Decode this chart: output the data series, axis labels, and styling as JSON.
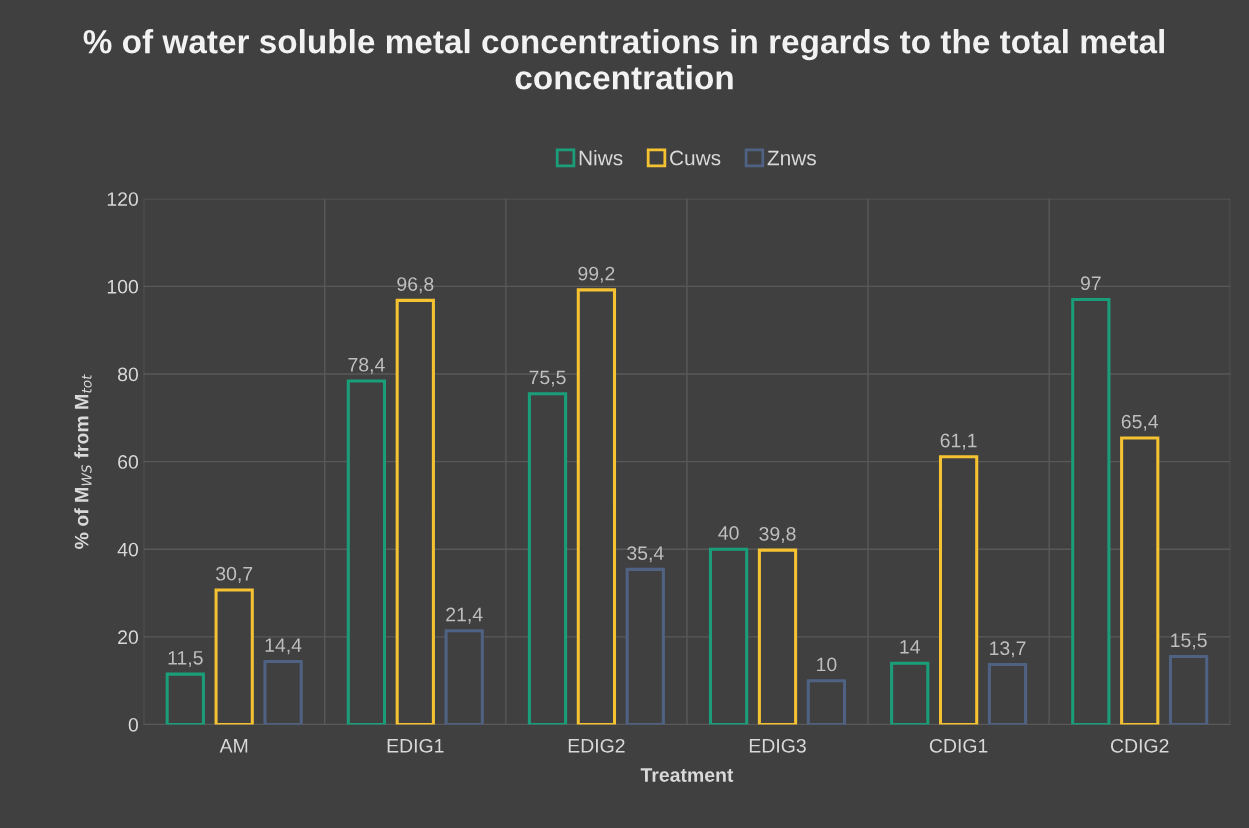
{
  "chart_data": {
    "type": "bar",
    "title": "% of water soluble metal concentrations in regards to the total metal concentration",
    "xlabel": "Treatment",
    "ylabel": "% of M$_{WS}$ from M$_{tot}$",
    "categories": [
      "AM",
      "EDIG1",
      "EDIG2",
      "EDIG3",
      "CDIG1",
      "CDIG2"
    ],
    "series": [
      {
        "name": "Niws",
        "color": "#1a9e7a",
        "values": [
          11.5,
          78.4,
          75.5,
          40,
          14,
          97
        ],
        "value_labels": [
          "11,5",
          "78,4",
          "75,5",
          "40",
          "14",
          "97"
        ]
      },
      {
        "name": "Cuws",
        "color": "#f5c232",
        "values": [
          30.7,
          96.8,
          99.2,
          39.8,
          61.1,
          65.4
        ],
        "value_labels": [
          "30,7",
          "96,8",
          "99,2",
          "39,8",
          "61,1",
          "65,4"
        ]
      },
      {
        "name": "Znws",
        "color": "#4f6283",
        "values": [
          14.4,
          21.4,
          35.4,
          10,
          13.7,
          15.5
        ],
        "value_labels": [
          "14,4",
          "21,4",
          "35,4",
          "10",
          "13,7",
          "15,5"
        ]
      }
    ],
    "ylim": [
      0,
      120
    ],
    "yticks": [
      0,
      20,
      40,
      60,
      80,
      100,
      120
    ],
    "grid": true,
    "legend": "top"
  }
}
